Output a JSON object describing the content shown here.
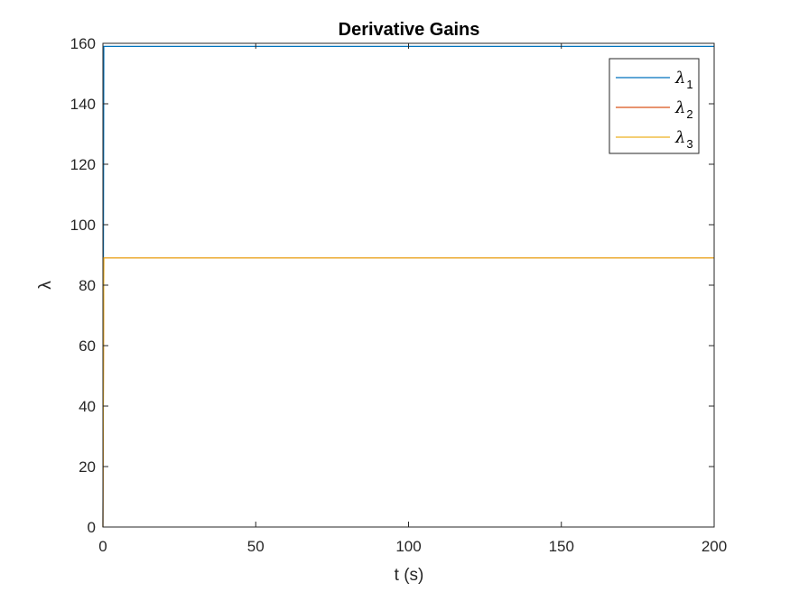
{
  "chart_data": {
    "type": "line",
    "title": "Derivative Gains",
    "xlabel": "t (s)",
    "ylabel": "λ",
    "xlim": [
      0,
      200
    ],
    "ylim": [
      0,
      160
    ],
    "xticks": [
      0,
      50,
      100,
      150,
      200
    ],
    "yticks": [
      0,
      20,
      40,
      60,
      80,
      100,
      120,
      140,
      160
    ],
    "xtick_labels": [
      "0",
      "50",
      "100",
      "150",
      "200"
    ],
    "ytick_labels": [
      "0",
      "20",
      "40",
      "60",
      "80",
      "100",
      "120",
      "140",
      "160"
    ],
    "grid": false,
    "legend_position": "top-right",
    "series": [
      {
        "name": "λ",
        "subscript": "1",
        "color": "#0072BD",
        "x": [
          0,
          0.3,
          200
        ],
        "y": [
          0,
          159,
          159
        ]
      },
      {
        "name": "λ",
        "subscript": "2",
        "color": "#D95319",
        "x": [
          0,
          0.3,
          200
        ],
        "y": [
          0,
          89,
          89
        ]
      },
      {
        "name": "λ",
        "subscript": "3",
        "color": "#EDB120",
        "x": [
          0,
          0.3,
          200
        ],
        "y": [
          0,
          89,
          89
        ]
      }
    ]
  }
}
